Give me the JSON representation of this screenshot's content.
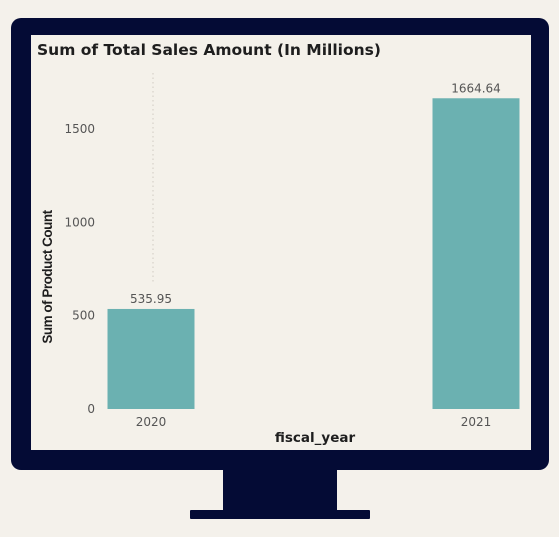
{
  "chart_data": {
    "type": "bar",
    "title": "Sum of Total Sales Amount (In Millions)",
    "xlabel": "fiscal_year",
    "ylabel": "Sum of Product Count",
    "categories": [
      "2020",
      "2021"
    ],
    "values": [
      535.95,
      1664.64
    ],
    "data_labels": [
      "535.95",
      "1664.64"
    ],
    "yticks": [
      0,
      500,
      1000,
      1500
    ],
    "ylim": [
      0,
      1800
    ],
    "grid": false,
    "legend": "none",
    "colors": {
      "bar": "#6bb1b1",
      "text": "#555555",
      "axis_title": "#1e1e1e",
      "frame": "#040b35"
    }
  }
}
